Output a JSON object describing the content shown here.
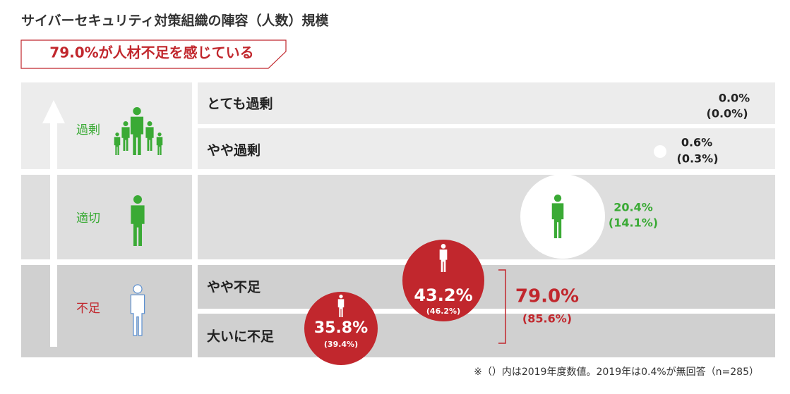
{
  "title": "サイバーセキュリティ対策組織の陣容（人数）規模",
  "banner": "79.0%が人材不足を感じている",
  "levels": [
    {
      "label": "過剰"
    },
    {
      "label": "適切"
    },
    {
      "label": "不足"
    }
  ],
  "rows": [
    {
      "label": "とても過剰",
      "value": 0.0,
      "value_label": "0.0%",
      "previous": 0.0,
      "previous_label": "(0.0%)"
    },
    {
      "label": "やや過剰",
      "value": 0.6,
      "value_label": "0.6%",
      "previous": 0.3,
      "previous_label": "(0.3%)"
    },
    {
      "value": 20.4,
      "value_label": "20.4%",
      "previous": 14.1,
      "previous_label": "(14.1%)"
    },
    {
      "label": "やや不足",
      "value": 43.2,
      "value_label": "43.2%",
      "previous": 46.2,
      "previous_label": "(46.2%)"
    },
    {
      "label": "大いに不足",
      "value": 35.8,
      "value_label": "35.8%",
      "previous": 39.4,
      "previous_label": "(39.4%)"
    }
  ],
  "total": {
    "value": 79.0,
    "value_label": "79.0%",
    "previous": 85.6,
    "previous_label": "(85.6%)"
  },
  "footnote": "※（）内は2019年度数値。2019年は0.4%が無回答（n=285）"
}
